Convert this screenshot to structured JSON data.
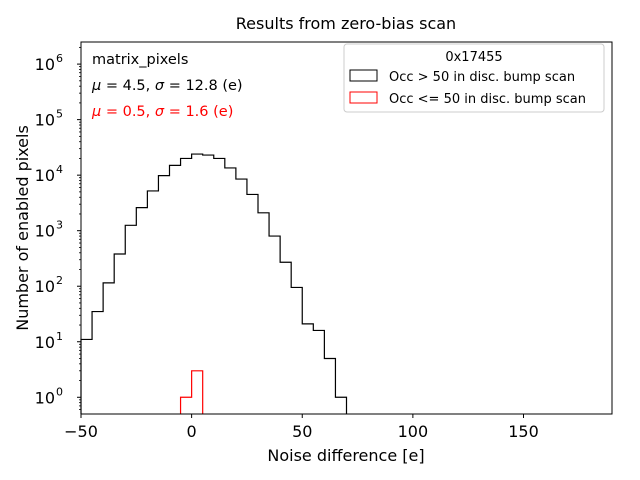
{
  "chart_data": {
    "type": "histogram",
    "title": "Results from zero-bias scan",
    "xlabel": "Noise difference [e]",
    "ylabel": "Number of enabled pixels",
    "xlim": [
      -50,
      190
    ],
    "ylim": [
      0.5,
      2500000
    ],
    "yscale": "log",
    "x_ticks": [
      -50,
      0,
      50,
      100,
      150
    ],
    "x_tick_labels": [
      "−50",
      "0",
      "50",
      "100",
      "150"
    ],
    "y_ticks": [
      1,
      10,
      100,
      1000,
      10000,
      100000,
      1000000
    ],
    "y_tick_bases": [
      "10",
      "10",
      "10",
      "10",
      "10",
      "10",
      "10"
    ],
    "y_tick_exps": [
      "0",
      "1",
      "2",
      "3",
      "4",
      "5",
      "6"
    ],
    "annotation": {
      "dataset": "matrix_pixels",
      "stats_black": {
        "mu_sym": "μ",
        "mu_val": " = 4.5, ",
        "sigma_sym": "σ",
        "sigma_val": " = 12.8 (e)"
      },
      "stats_red": {
        "mu_sym": "μ",
        "mu_val": " = 0.5, ",
        "sigma_sym": "σ",
        "sigma_val": " = 1.6 (e)"
      }
    },
    "legend": {
      "title": "0x17455",
      "placement": "top-right",
      "entries": [
        {
          "label": "Occ > 50 in disc. bump scan",
          "color": "#000000"
        },
        {
          "label": "Occ <= 50 in disc. bump scan",
          "color": "#ff0000"
        }
      ]
    },
    "series": [
      {
        "name": "Occ > 50 in disc. bump scan",
        "color": "#000000",
        "bin_width": 5,
        "bin_edges_start": -50,
        "values": [
          11,
          35,
          115,
          380,
          1250,
          2600,
          5200,
          9800,
          15000,
          20000,
          24000,
          23000,
          20000,
          13500,
          8500,
          4500,
          2100,
          800,
          270,
          95,
          21,
          16,
          5,
          1
        ]
      },
      {
        "name": "Occ <= 50 in disc. bump scan",
        "color": "#ff0000",
        "bin_width": 5,
        "bin_edges_start": -5,
        "values": [
          1,
          3
        ]
      }
    ]
  }
}
